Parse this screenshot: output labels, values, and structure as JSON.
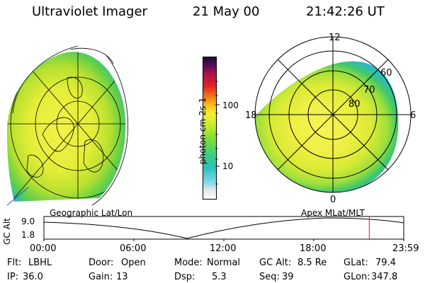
{
  "header": {
    "title": "Ultraviolet Imager",
    "date": "21 May 00",
    "time": "21:42:26 UT"
  },
  "colorbar": {
    "unit_label": "photon cm-2s-1",
    "ticks": [
      "100",
      "10"
    ]
  },
  "polar_plot": {
    "mlt_labels": [
      "12",
      "18",
      "6",
      "0"
    ],
    "mlat_labels": [
      "60",
      "70",
      "80"
    ]
  },
  "panel_labels": {
    "left": "Geographic Lat/Lon",
    "right": "Apex MLat/MLT"
  },
  "altitude_plot": {
    "y_title": "GC Alt",
    "y_ticks": [
      "9.0",
      "1.8"
    ],
    "x_ticks": [
      "00:00",
      "06:00",
      "12:00",
      "18:00",
      "23:59"
    ],
    "current_time_hours": 21.7
  },
  "info": {
    "flt_label": "Flt:",
    "flt_value": "LBHL",
    "ip_label": "IP:",
    "ip_value": "36.0",
    "door_label": "Door:",
    "door_value": "Open",
    "gain_label": "Gain:",
    "gain_value": "13",
    "mode_label": "Mode:",
    "mode_value": "Normal",
    "dsp_label": "Dsp:",
    "dsp_value": "5.3",
    "gcalt_label": "GC Alt:",
    "gcalt_value": "8.5 Re",
    "seq_label": "Seq:",
    "seq_value": "39",
    "glat_label": "GLat:",
    "glat_value": "79.4",
    "glon_label": "GLon:",
    "glon_value": "347.8"
  }
}
